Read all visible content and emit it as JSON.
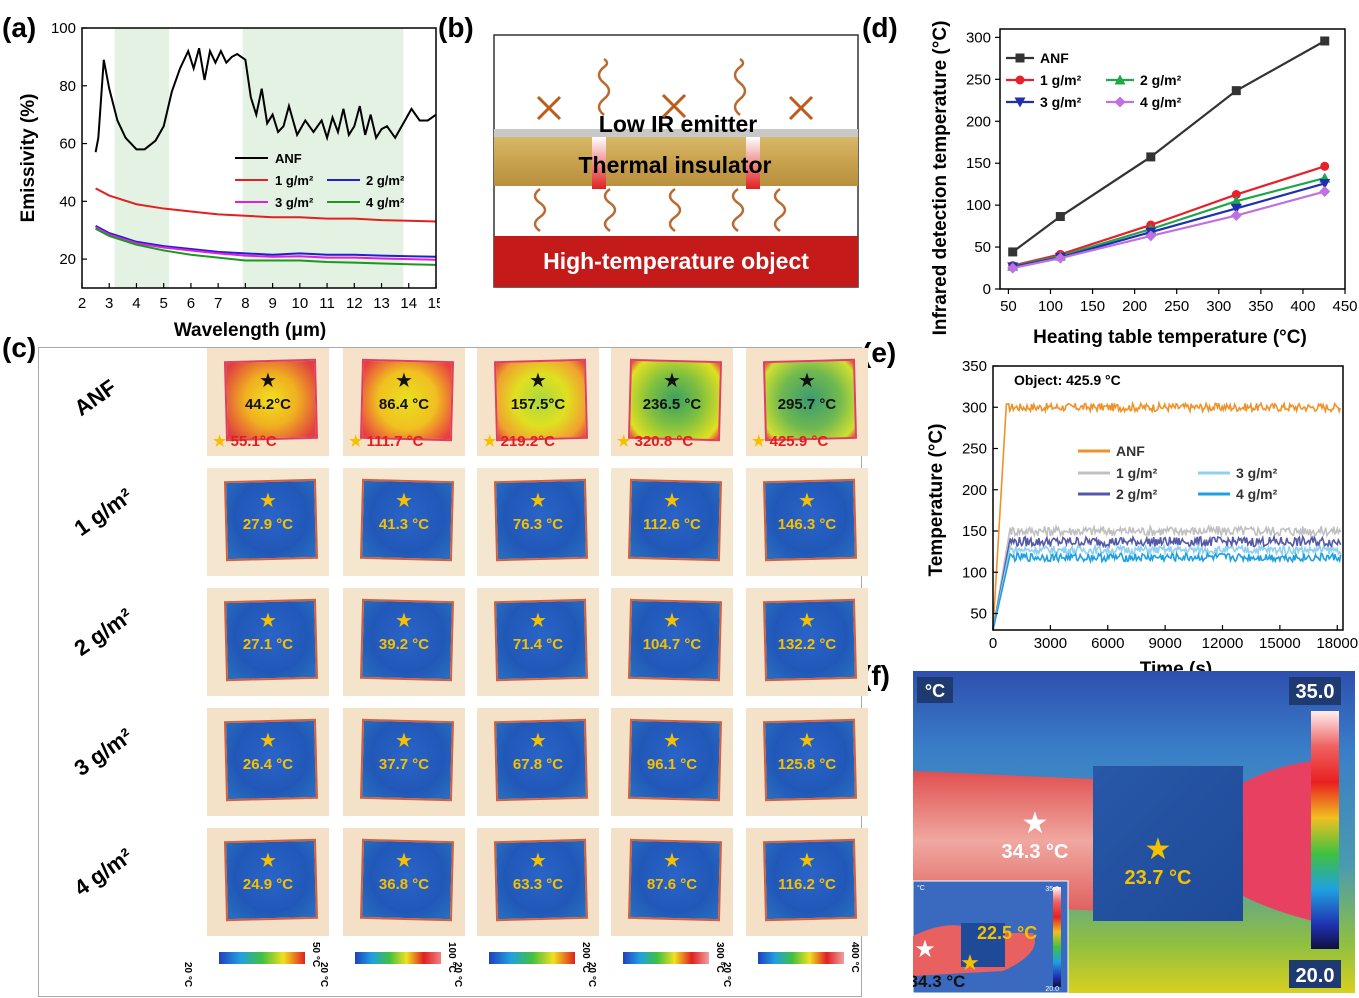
{
  "panels": {
    "a": "(a)",
    "b": "(b)",
    "c": "(c)",
    "d": "(d)",
    "e": "(e)",
    "f": "(f)"
  },
  "chart_data": [
    {
      "id": "a",
      "type": "line",
      "xlabel": "Wavelength (μm)",
      "ylabel": "Emissivity (%)",
      "xlim": [
        2,
        15
      ],
      "ylim": [
        10,
        100
      ],
      "xticks": [
        "2",
        "3",
        "4",
        "5",
        "6",
        "7",
        "8",
        "9",
        "10",
        "11",
        "12",
        "13",
        "14",
        "15"
      ],
      "yticks": [
        "20",
        "40",
        "60",
        "80",
        "100"
      ],
      "shaded_regions_um": [
        [
          3.2,
          5.2
        ],
        [
          7.9,
          13.8
        ]
      ],
      "legend": [
        "ANF",
        "1 g/m²",
        "2 g/m²",
        "3 g/m²",
        "4 g/m²"
      ],
      "series": [
        {
          "name": "ANF",
          "color": "#000000",
          "x": [
            2.5,
            2.6,
            2.8,
            3.0,
            3.3,
            3.6,
            4.0,
            4.3,
            4.7,
            5.0,
            5.3,
            5.6,
            5.9,
            6.1,
            6.3,
            6.5,
            6.7,
            6.9,
            7.1,
            7.3,
            7.5,
            7.7,
            8.0,
            8.2,
            8.4,
            8.6,
            8.8,
            9.0,
            9.2,
            9.4,
            9.6,
            9.9,
            10.2,
            10.5,
            10.8,
            11.0,
            11.2,
            11.4,
            11.6,
            11.8,
            12.0,
            12.2,
            12.4,
            12.6,
            12.8,
            13.0,
            13.2,
            13.5,
            13.8,
            14.1,
            14.4,
            14.7,
            15.0
          ],
          "y": [
            57,
            62,
            89,
            79,
            68,
            62,
            58,
            58,
            61,
            66,
            78,
            86,
            92,
            86,
            93,
            82,
            92,
            88,
            92,
            88,
            90,
            91,
            89,
            76,
            70,
            79,
            67,
            70,
            64,
            66,
            73,
            63,
            68,
            64,
            68,
            62,
            69,
            64,
            72,
            63,
            66,
            73,
            63,
            70,
            62,
            65,
            66,
            62,
            67,
            72,
            68,
            68,
            70
          ]
        },
        {
          "name": "1 g/m²",
          "color": "#e32020",
          "x": [
            2.5,
            3,
            4,
            5,
            6,
            7,
            8,
            9,
            10,
            11,
            12,
            13,
            14,
            15
          ],
          "y": [
            44.5,
            42,
            39,
            37.5,
            36.5,
            35.5,
            35,
            34.5,
            34.5,
            34,
            34,
            33.5,
            33.3,
            33
          ]
        },
        {
          "name": "2 g/m²",
          "color": "#2020d0",
          "x": [
            2.5,
            3,
            4,
            5,
            6,
            7,
            8,
            9,
            10,
            11,
            12,
            13,
            14,
            15
          ],
          "y": [
            31.5,
            29,
            26,
            24.5,
            23.5,
            22.5,
            22,
            21.5,
            22,
            21.5,
            21.5,
            21.2,
            21,
            20.8
          ]
        },
        {
          "name": "3 g/m²",
          "color": "#e020e0",
          "x": [
            2.5,
            3,
            4,
            5,
            6,
            7,
            8,
            9,
            10,
            11,
            12,
            13,
            14,
            15
          ],
          "y": [
            31,
            28.5,
            25.5,
            24,
            23,
            22,
            21.2,
            20.8,
            21,
            20.5,
            20.5,
            20.2,
            20,
            19.8
          ]
        },
        {
          "name": "4 g/m²",
          "color": "#1a9a1a",
          "x": [
            2.5,
            3,
            4,
            5,
            6,
            7,
            8,
            9,
            10,
            11,
            12,
            13,
            14,
            15
          ],
          "y": [
            30.5,
            28,
            25,
            23,
            21.5,
            20.5,
            19.5,
            19.5,
            19.5,
            19,
            18.8,
            18.5,
            18.2,
            18
          ]
        }
      ]
    },
    {
      "id": "d",
      "type": "line",
      "xlabel": "Heating table temperature (°C)",
      "ylabel": "Infrared detection temperature (°C)",
      "xlim": [
        40,
        450
      ],
      "ylim": [
        0,
        310
      ],
      "xticks": [
        "50",
        "100",
        "150",
        "200",
        "250",
        "300",
        "350",
        "400",
        "450"
      ],
      "yticks": [
        "0",
        "50",
        "100",
        "150",
        "200",
        "250",
        "300"
      ],
      "x": [
        55.1,
        111.7,
        219.2,
        320.8,
        425.9
      ],
      "series": [
        {
          "name": "ANF",
          "color": "#333333",
          "marker": "square",
          "values": [
            44.2,
            86.4,
            157.5,
            236.5,
            295.7
          ]
        },
        {
          "name": "1 g/m²",
          "color": "#e8202a",
          "marker": "circle",
          "values": [
            27.9,
            41.3,
            76.3,
            112.6,
            146.3
          ]
        },
        {
          "name": "2 g/m²",
          "color": "#1aa84a",
          "marker": "triangle-up",
          "values": [
            27.1,
            39.2,
            71.4,
            104.7,
            132.2
          ]
        },
        {
          "name": "3 g/m²",
          "color": "#1f2fb0",
          "marker": "triangle-down",
          "values": [
            26.4,
            37.7,
            67.8,
            96.1,
            125.8
          ]
        },
        {
          "name": "4 g/m²",
          "color": "#c070e0",
          "marker": "diamond",
          "values": [
            24.9,
            36.8,
            63.3,
            87.6,
            116.2
          ]
        }
      ],
      "legend": [
        "ANF",
        "1 g/m²",
        "2 g/m²",
        "3 g/m²",
        "4 g/m²"
      ]
    },
    {
      "id": "e",
      "type": "line",
      "xlabel": "Time (s)",
      "ylabel": "Temperature (°C)",
      "annotation": "Object: 425.9 °C",
      "xlim": [
        0,
        18300
      ],
      "ylim": [
        30,
        350
      ],
      "xticks": [
        "0",
        "3000",
        "6000",
        "9000",
        "12000",
        "15000",
        "18000"
      ],
      "yticks": [
        "50",
        "100",
        "150",
        "200",
        "250",
        "300",
        "350"
      ],
      "series": [
        {
          "name": "ANF",
          "color": "#f0922a",
          "plateau": 300,
          "noise": 5,
          "rise_s": 700,
          "start": 30
        },
        {
          "name": "1 g/m²",
          "color": "#c0c0c0",
          "plateau": 150,
          "noise": 6,
          "rise_s": 900,
          "start": 30
        },
        {
          "name": "2 g/m²",
          "color": "#5558a8",
          "plateau": 137,
          "noise": 6,
          "rise_s": 900,
          "start": 30
        },
        {
          "name": "3 g/m²",
          "color": "#8fd0f0",
          "plateau": 127,
          "noise": 5,
          "rise_s": 900,
          "start": 30
        },
        {
          "name": "4 g/m²",
          "color": "#1ea0e0",
          "plateau": 118,
          "noise": 5,
          "rise_s": 900,
          "start": 30
        }
      ],
      "legend": [
        "ANF",
        "1 g/m²",
        "3 g/m²",
        "2 g/m²",
        "4 g/m²"
      ]
    }
  ],
  "schematic_b": {
    "top_layer": "Low IR emitter",
    "middle_layer": "Thermal insulator",
    "bottom_layer": "High-temperature object"
  },
  "grid_c": {
    "row_labels": [
      "ANF",
      "1 g/m²",
      "2 g/m²",
      "3 g/m²",
      "4 g/m²"
    ],
    "heating_temps": [
      "55.1°C",
      "111.7 °C",
      "219.2°C",
      "320.8 °C",
      "425.9 °C"
    ],
    "cells": [
      [
        "44.2°C",
        "86.4 °C",
        "157.5°C",
        "236.5 °C",
        "295.7 °C"
      ],
      [
        "27.9 °C",
        "41.3 °C",
        "76.3 °C",
        "112.6 °C",
        "146.3 °C"
      ],
      [
        "27.1 °C",
        "39.2 °C",
        "71.4 °C",
        "104.7 °C",
        "132.2 °C"
      ],
      [
        "26.4 °C",
        "37.7 °C",
        "67.8 °C",
        "96.1 °C",
        "125.8 °C"
      ],
      [
        "24.9 °C",
        "36.8 °C",
        "63.3 °C",
        "87.6 °C",
        "116.2 °C"
      ]
    ],
    "scale_min": [
      "20 °C",
      "20 °C",
      "20 °C",
      "20 °C",
      "20 °C"
    ],
    "scale_max": [
      "50 °C",
      "100 °C",
      "200 °C",
      "300 °C",
      "400 °C"
    ]
  },
  "thermal_f": {
    "unit": "°C",
    "scale_max": "35.0",
    "scale_min": "20.0",
    "skin_temp": "34.3 °C",
    "fabric_temp": "23.7 °C",
    "inset_fabric_temp": "22.5 °C",
    "inset_skin_temp": "34.3 °C",
    "inset_max": "35.0",
    "inset_min": "20.0",
    "inset_unit": "°C"
  }
}
